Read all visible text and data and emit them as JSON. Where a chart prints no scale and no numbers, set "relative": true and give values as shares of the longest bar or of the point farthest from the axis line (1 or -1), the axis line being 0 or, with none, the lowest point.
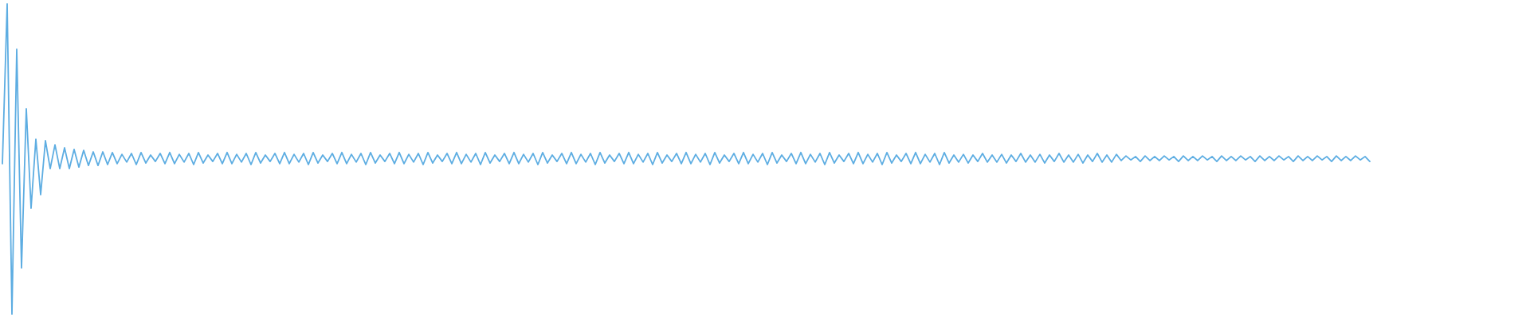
{
  "chart_data": {
    "type": "line",
    "relative": true,
    "color": "#5dade2",
    "categories": [
      null,
      null,
      null,
      null,
      null,
      null,
      null,
      null,
      null,
      null,
      null,
      null,
      null,
      null,
      null,
      null,
      null,
      null,
      null,
      null,
      null,
      null,
      null,
      null,
      null,
      null,
      null,
      null,
      null,
      null,
      null,
      null,
      null,
      null,
      null,
      null,
      null,
      null,
      null,
      null,
      null,
      null,
      null,
      null,
      null,
      null,
      null,
      null,
      null,
      null,
      null,
      null,
      null,
      null,
      null,
      null,
      null,
      null,
      null,
      null,
      null,
      null,
      null,
      null,
      null,
      null,
      null,
      null,
      null,
      null,
      null,
      null,
      null,
      null,
      null,
      null,
      null,
      null,
      null,
      null,
      null,
      null,
      null,
      null,
      null,
      null,
      null,
      null,
      null,
      null,
      null,
      null,
      null,
      null,
      null,
      null,
      null,
      null,
      null,
      null,
      null,
      null,
      null,
      null,
      null,
      null,
      null,
      null,
      null,
      null,
      null,
      null,
      null,
      null,
      null,
      null,
      null,
      null,
      null,
      null,
      null,
      null,
      null,
      null,
      null,
      null,
      null,
      null,
      null,
      null,
      null,
      null,
      null,
      null,
      null,
      null,
      null,
      null,
      null,
      null,
      null,
      null,
      null,
      null,
      null,
      null,
      null,
      null,
      null,
      null,
      null,
      null,
      null,
      null,
      null,
      null,
      null,
      null,
      null,
      null,
      null,
      null,
      null,
      null,
      null,
      null,
      null,
      null,
      null,
      null,
      null,
      null,
      null,
      null,
      null,
      null,
      null,
      null,
      null,
      null,
      null,
      null,
      null,
      null,
      null,
      null,
      null,
      null,
      null,
      null,
      null,
      null,
      null,
      null,
      null,
      null,
      null,
      null,
      null,
      null,
      null,
      null,
      null,
      null,
      null,
      null,
      null,
      null,
      null,
      null,
      null,
      null,
      null,
      null,
      null,
      null,
      null,
      null,
      null,
      null,
      null,
      null,
      null,
      null,
      null,
      null,
      null,
      null,
      null,
      null,
      null,
      null,
      null,
      null,
      null,
      null,
      null,
      null,
      null,
      null,
      null,
      null,
      null,
      null,
      null,
      null,
      null,
      null,
      null,
      null,
      null,
      null,
      null,
      null,
      null,
      null,
      null,
      null,
      null,
      null,
      null,
      null,
      null,
      null,
      null,
      null,
      null,
      null,
      null,
      null,
      null,
      null,
      null,
      null,
      null,
      null,
      null,
      null,
      null,
      null,
      null,
      null,
      null,
      null,
      null,
      null,
      null,
      null,
      null,
      null,
      null,
      null,
      null,
      null,
      null,
      null,
      null,
      null,
      null,
      null,
      null,
      null,
      null,
      null,
      null,
      null,
      null,
      null,
      null,
      null,
      null,
      null,
      null,
      null,
      null,
      null,
      null,
      null,
      null,
      null
    ],
    "values": [
      0.485,
      1.0,
      0.0,
      0.854,
      0.149,
      0.662,
      0.341,
      0.564,
      0.385,
      0.559,
      0.469,
      0.546,
      0.469,
      0.536,
      0.469,
      0.531,
      0.474,
      0.528,
      0.479,
      0.523,
      0.479,
      0.523,
      0.482,
      0.521,
      0.485,
      0.515,
      0.49,
      0.518,
      0.482,
      0.521,
      0.487,
      0.513,
      0.492,
      0.518,
      0.485,
      0.521,
      0.485,
      0.515,
      0.49,
      0.518,
      0.482,
      0.521,
      0.487,
      0.513,
      0.492,
      0.518,
      0.485,
      0.521,
      0.485,
      0.515,
      0.49,
      0.518,
      0.482,
      0.521,
      0.487,
      0.513,
      0.492,
      0.518,
      0.485,
      0.521,
      0.485,
      0.515,
      0.49,
      0.518,
      0.482,
      0.521,
      0.487,
      0.513,
      0.492,
      0.518,
      0.485,
      0.521,
      0.485,
      0.515,
      0.49,
      0.518,
      0.482,
      0.521,
      0.487,
      0.513,
      0.492,
      0.518,
      0.485,
      0.521,
      0.485,
      0.515,
      0.49,
      0.518,
      0.482,
      0.521,
      0.487,
      0.513,
      0.492,
      0.518,
      0.485,
      0.521,
      0.485,
      0.515,
      0.49,
      0.518,
      0.482,
      0.521,
      0.487,
      0.513,
      0.492,
      0.518,
      0.485,
      0.521,
      0.485,
      0.515,
      0.49,
      0.518,
      0.482,
      0.521,
      0.487,
      0.513,
      0.492,
      0.518,
      0.485,
      0.521,
      0.485,
      0.515,
      0.49,
      0.518,
      0.482,
      0.521,
      0.487,
      0.513,
      0.492,
      0.518,
      0.485,
      0.521,
      0.485,
      0.515,
      0.49,
      0.518,
      0.482,
      0.521,
      0.487,
      0.513,
      0.492,
      0.518,
      0.485,
      0.521,
      0.485,
      0.515,
      0.49,
      0.518,
      0.482,
      0.521,
      0.487,
      0.513,
      0.492,
      0.518,
      0.485,
      0.521,
      0.485,
      0.515,
      0.49,
      0.518,
      0.482,
      0.521,
      0.487,
      0.513,
      0.492,
      0.518,
      0.485,
      0.521,
      0.485,
      0.515,
      0.49,
      0.518,
      0.482,
      0.521,
      0.487,
      0.513,
      0.492,
      0.518,
      0.485,
      0.521,
      0.485,
      0.515,
      0.49,
      0.518,
      0.482,
      0.521,
      0.487,
      0.513,
      0.492,
      0.518,
      0.485,
      0.521,
      0.485,
      0.515,
      0.49,
      0.518,
      0.482,
      0.521,
      0.487,
      0.513,
      0.49,
      0.515,
      0.487,
      0.513,
      0.492,
      0.518,
      0.49,
      0.513,
      0.49,
      0.515,
      0.487,
      0.513,
      0.492,
      0.518,
      0.49,
      0.513,
      0.49,
      0.515,
      0.487,
      0.513,
      0.492,
      0.518,
      0.49,
      0.513,
      0.49,
      0.515,
      0.487,
      0.513,
      0.492,
      0.518,
      0.49,
      0.513,
      0.49,
      0.515,
      0.495,
      0.51,
      0.497,
      0.508,
      0.492,
      0.51,
      0.495,
      0.508,
      0.495,
      0.51,
      0.497,
      0.508,
      0.492,
      0.51,
      0.495,
      0.508,
      0.495,
      0.51,
      0.497,
      0.508,
      0.492,
      0.51,
      0.495,
      0.508,
      0.495,
      0.51,
      0.497,
      0.508,
      0.492,
      0.51,
      0.495,
      0.508,
      0.495,
      0.51,
      0.497,
      0.508,
      0.492,
      0.51,
      0.495,
      0.508,
      0.495,
      0.51,
      0.497,
      0.508,
      0.492,
      0.51,
      0.495,
      0.508,
      0.495,
      0.51,
      0.497,
      0.508,
      0.492,
      null,
      null,
      null,
      null,
      null,
      null,
      null,
      null,
      null,
      null,
      null,
      null,
      null,
      null,
      null,
      null,
      null,
      null,
      null,
      null,
      null,
      null,
      null,
      null,
      null,
      null,
      null,
      null,
      null,
      null,
      null,
      null,
      null
    ]
  }
}
